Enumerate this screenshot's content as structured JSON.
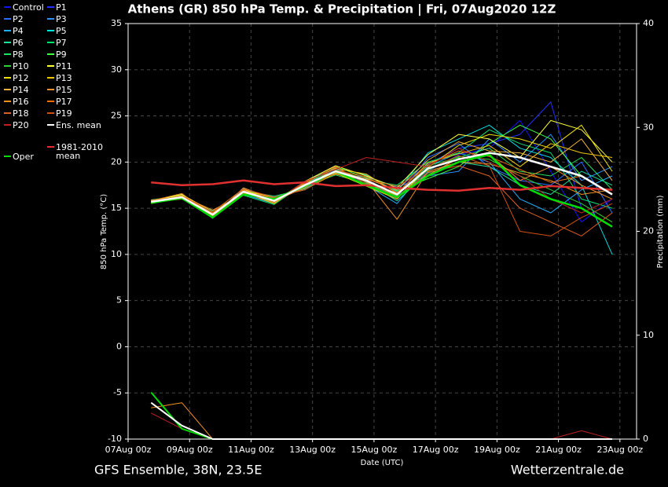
{
  "chart_data": {
    "type": "line",
    "title": "Athens  (GR)  850 hPa Temp. & Precipitation | Fri, 07Aug2020 12Z",
    "footnote": "GFS Ensemble, 38N, 23.5E",
    "source": "Wetterzentrale.de",
    "xlabel": "Date (UTC)",
    "ylabel": "850 hPa Temp. (°C)",
    "y2label": "Precipitation (mm)",
    "x": [
      18,
      42,
      66,
      90,
      114,
      138,
      162,
      186,
      210,
      234,
      258,
      282,
      306,
      330,
      354,
      378
    ],
    "xlim": [
      0,
      397
    ],
    "xticks": [
      {
        "value": 0,
        "label": "07Aug 00z"
      },
      {
        "value": 48,
        "label": "09Aug 00z"
      },
      {
        "value": 96,
        "label": "11Aug 00z"
      },
      {
        "value": 144,
        "label": "13Aug 00z"
      },
      {
        "value": 192,
        "label": "15Aug 00z"
      },
      {
        "value": 240,
        "label": "17Aug 00z"
      },
      {
        "value": 288,
        "label": "19Aug 00z"
      },
      {
        "value": 336,
        "label": "21Aug 00z"
      },
      {
        "value": 384,
        "label": "23Aug 00z"
      }
    ],
    "ylim": [
      -10,
      35
    ],
    "yticks": [
      -10,
      -5,
      0,
      5,
      10,
      15,
      20,
      25,
      30,
      35
    ],
    "y2lim": [
      0,
      40
    ],
    "y2ticks": [
      0,
      10,
      20,
      30,
      40
    ],
    "grid": true,
    "series": [
      {
        "name": "Control",
        "color": "#1010ff",
        "values": [
          15.6,
          16.3,
          14.2,
          17.0,
          16.2,
          17.0,
          19.2,
          17.6,
          16.0,
          19.0,
          20.8,
          21.5,
          24.5,
          19.0,
          13.5,
          16.0
        ]
      },
      {
        "name": "P1",
        "color": "#2030ff",
        "values": [
          15.8,
          16.0,
          14.5,
          16.6,
          15.6,
          17.8,
          18.8,
          18.2,
          17.0,
          19.8,
          21.5,
          22.0,
          23.0,
          26.5,
          15.0,
          13.0
        ]
      },
      {
        "name": "P2",
        "color": "#2a6fff",
        "values": [
          15.5,
          16.4,
          14.0,
          17.2,
          16.0,
          17.3,
          19.3,
          17.8,
          16.2,
          20.5,
          22.0,
          19.5,
          18.0,
          17.5,
          20.0,
          14.5
        ]
      },
      {
        "name": "P3",
        "color": "#2a90ff",
        "values": [
          15.9,
          16.1,
          14.6,
          16.5,
          15.5,
          17.6,
          18.7,
          18.4,
          17.3,
          18.5,
          19.0,
          22.5,
          20.0,
          23.0,
          18.0,
          19.5
        ]
      },
      {
        "name": "P4",
        "color": "#20b0ff",
        "values": [
          15.6,
          16.5,
          13.9,
          17.1,
          16.1,
          17.2,
          19.1,
          17.5,
          15.5,
          19.5,
          21.0,
          20.0,
          16.0,
          14.5,
          17.0,
          18.5
        ]
      },
      {
        "name": "P5",
        "color": "#00e0e0",
        "values": [
          15.8,
          16.0,
          14.4,
          16.7,
          15.7,
          17.9,
          19.4,
          18.6,
          16.8,
          21.0,
          22.5,
          24.0,
          21.5,
          20.5,
          17.5,
          10.0
        ]
      },
      {
        "name": "P6",
        "color": "#20e0a0",
        "values": [
          15.7,
          16.3,
          14.1,
          16.9,
          16.3,
          17.1,
          18.9,
          17.9,
          15.8,
          18.8,
          20.0,
          19.5,
          17.5,
          16.5,
          19.0,
          17.5
        ]
      },
      {
        "name": "P7",
        "color": "#00e070",
        "values": [
          15.6,
          16.2,
          14.7,
          16.4,
          15.4,
          17.7,
          19.2,
          18.1,
          17.5,
          20.0,
          21.0,
          23.5,
          22.0,
          21.0,
          16.0,
          15.0
        ]
      },
      {
        "name": "P8",
        "color": "#20e060",
        "values": [
          15.9,
          16.4,
          14.0,
          17.0,
          16.0,
          17.4,
          18.6,
          17.7,
          16.4,
          19.6,
          20.5,
          21.5,
          19.0,
          18.5,
          20.5,
          17.0
        ]
      },
      {
        "name": "P9",
        "color": "#40ff40",
        "values": [
          15.5,
          16.1,
          14.5,
          16.8,
          15.6,
          17.6,
          19.5,
          18.3,
          16.9,
          18.2,
          19.5,
          22.0,
          24.0,
          22.5,
          18.5,
          16.5
        ]
      },
      {
        "name": "P10",
        "color": "#30d030",
        "values": [
          15.7,
          16.0,
          14.2,
          16.6,
          15.9,
          17.3,
          18.9,
          17.6,
          16.2,
          19.1,
          20.6,
          20.3,
          18.5,
          17.0,
          15.5,
          13.5
        ]
      },
      {
        "name": "P11",
        "color": "#ffff40",
        "values": [
          15.8,
          16.5,
          14.6,
          17.1,
          15.7,
          17.9,
          19.6,
          18.5,
          17.2,
          20.8,
          23.0,
          22.5,
          20.5,
          24.5,
          23.5,
          20.0
        ]
      },
      {
        "name": "P12",
        "color": "#f0e000",
        "values": [
          15.6,
          16.2,
          14.3,
          16.9,
          16.2,
          17.0,
          18.8,
          17.4,
          16.0,
          19.4,
          21.8,
          23.0,
          22.5,
          21.5,
          24.0,
          19.0
        ]
      },
      {
        "name": "P13",
        "color": "#f0c800",
        "values": [
          15.7,
          16.4,
          14.4,
          16.7,
          15.5,
          17.8,
          19.3,
          18.7,
          16.6,
          19.9,
          20.9,
          21.8,
          19.5,
          22.0,
          21.0,
          20.5
        ]
      },
      {
        "name": "P14",
        "color": "#f0b040",
        "values": [
          15.9,
          16.1,
          14.0,
          17.2,
          16.0,
          17.5,
          19.0,
          18.2,
          17.0,
          20.2,
          22.2,
          21.2,
          21.0,
          20.0,
          22.5,
          18.0
        ]
      },
      {
        "name": "P15",
        "color": "#f09030",
        "values": [
          15.5,
          16.3,
          14.8,
          16.5,
          15.8,
          17.2,
          19.4,
          17.8,
          16.3,
          18.6,
          20.4,
          20.8,
          18.0,
          19.5,
          17.5,
          16.0
        ]
      },
      {
        "name": "P16",
        "color": "#f09020",
        "values": [
          15.8,
          16.6,
          14.1,
          17.0,
          15.6,
          17.6,
          18.7,
          18.0,
          13.8,
          19.0,
          20.0,
          19.8,
          18.8,
          18.0,
          16.5,
          17.0
        ],
        "precip": [
          3.0,
          3.5,
          0,
          0,
          0,
          0,
          0,
          0,
          0,
          0,
          0,
          0,
          0,
          0,
          0,
          0
        ]
      },
      {
        "name": "P17",
        "color": "#f07010",
        "values": [
          15.6,
          16.0,
          14.5,
          16.8,
          16.1,
          17.4,
          19.1,
          18.4,
          16.7,
          19.7,
          21.2,
          20.6,
          19.2,
          17.8,
          18.5,
          16.5
        ]
      },
      {
        "name": "P18",
        "color": "#e06020",
        "values": [
          15.7,
          16.2,
          14.2,
          16.6,
          15.9,
          17.7,
          19.5,
          17.6,
          16.1,
          18.9,
          19.6,
          18.5,
          15.0,
          13.5,
          12.0,
          14.5
        ]
      },
      {
        "name": "P19",
        "color": "#d05010",
        "values": [
          15.8,
          16.3,
          14.6,
          17.1,
          16.2,
          17.0,
          18.9,
          18.1,
          17.4,
          19.2,
          20.7,
          19.6,
          12.5,
          12.0,
          14.0,
          15.5
        ]
      },
      {
        "name": "P20",
        "color": "#c02020",
        "values": [
          15.6,
          16.1,
          14.3,
          16.9,
          15.7,
          17.9,
          19.2,
          20.5,
          20.0,
          19.5,
          21.5,
          20.0,
          18.5,
          16.0,
          14.5,
          16.0
        ],
        "precip": [
          2.5,
          1.0,
          0,
          0,
          0,
          0,
          0,
          0,
          0,
          0,
          0,
          0,
          0,
          0,
          0.8,
          0
        ]
      },
      {
        "name": "Ens. mean",
        "color": "#ffffff",
        "values": [
          15.7,
          16.2,
          14.3,
          16.8,
          15.8,
          17.5,
          19.0,
          18.0,
          16.5,
          19.3,
          20.3,
          21.0,
          20.5,
          19.5,
          18.5,
          16.5
        ],
        "precip": [
          3.5,
          1.3,
          0,
          0,
          0,
          0,
          0,
          0,
          0,
          0,
          0,
          0,
          0,
          0,
          0,
          0
        ]
      },
      {
        "name": "1981-2010 mean",
        "color": "#e03030",
        "values": [
          17.8,
          17.5,
          17.6,
          18.0,
          17.6,
          17.8,
          17.4,
          17.5,
          17.2,
          17.0,
          16.9,
          17.2,
          17.0,
          17.4,
          17.2,
          17.0
        ]
      },
      {
        "name": "Oper",
        "color": "#00dd00",
        "values": [
          15.6,
          16.1,
          14.0,
          16.5,
          16.0,
          17.4,
          19.0,
          17.5,
          16.2,
          18.5,
          20.0,
          20.8,
          17.5,
          16.0,
          15.0,
          13.0
        ],
        "precip": [
          4.5,
          1.0,
          0,
          0,
          0,
          0,
          0,
          0,
          0,
          0,
          0,
          0,
          0,
          0,
          0,
          0
        ]
      }
    ]
  }
}
